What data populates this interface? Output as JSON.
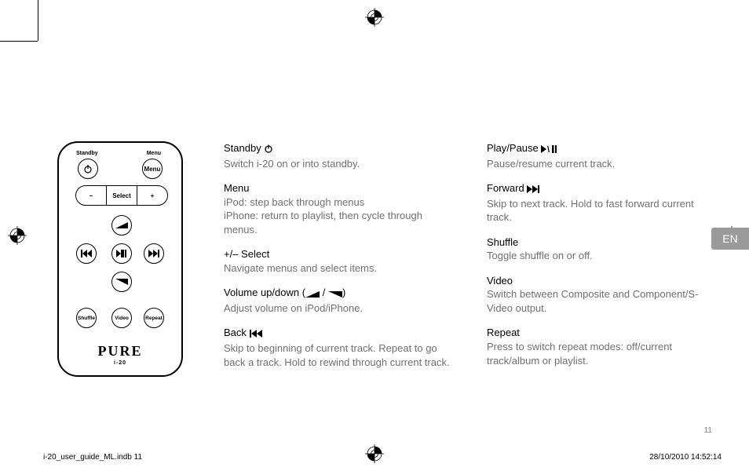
{
  "page_number": "11",
  "language_tab": "EN",
  "footer": {
    "file": "i-20_user_guide_ML.indb   11",
    "timestamp": "28/10/2010   14:52:14"
  },
  "remote": {
    "labels": {
      "standby": "Standby",
      "menu": "Menu"
    },
    "pill": {
      "minus": "−",
      "select": "Select",
      "plus": "+"
    },
    "row_play": {
      "back": "bb",
      "playpause": "pp",
      "fwd": "ff"
    },
    "row_bottom": {
      "shuffle": "Shuffle",
      "video": "Video",
      "repeat": "Repeat"
    },
    "brand": {
      "name": "PURE",
      "model": "i-20"
    }
  },
  "col1": [
    {
      "term": "Standby",
      "icon": "power",
      "desc": "Switch i-20 on or into standby."
    },
    {
      "term": "Menu",
      "desc": "iPod: step back through menus\niPhone: return to playlist, then cycle through menus."
    },
    {
      "term": "+/– Select",
      "desc": "Navigate menus and select items."
    },
    {
      "term": "Volume up/down",
      "icon": "vol",
      "desc": "Adjust volume on iPod/iPhone."
    },
    {
      "term": "Back",
      "icon": "back",
      "desc": "Skip to beginning of current track. Repeat to go back a track. Hold to rewind through current track."
    }
  ],
  "col2": [
    {
      "term": "Play/Pause",
      "icon": "playpause",
      "desc": "Pause/resume current track."
    },
    {
      "term": "Forward",
      "icon": "fwd",
      "desc": "Skip to next track. Hold to fast forward current track."
    },
    {
      "term": "Shuffle",
      "desc": "Toggle shuffle on or off."
    },
    {
      "term": "Video",
      "desc": "Switch between Composite and Component/S-Video output."
    },
    {
      "term": "Repeat",
      "desc": "Press to switch repeat modes: off/current track/album or playlist."
    }
  ],
  "colors": {
    "text_muted": "#707070",
    "text": "#000000",
    "tab_bg": "#9a9a9a"
  }
}
